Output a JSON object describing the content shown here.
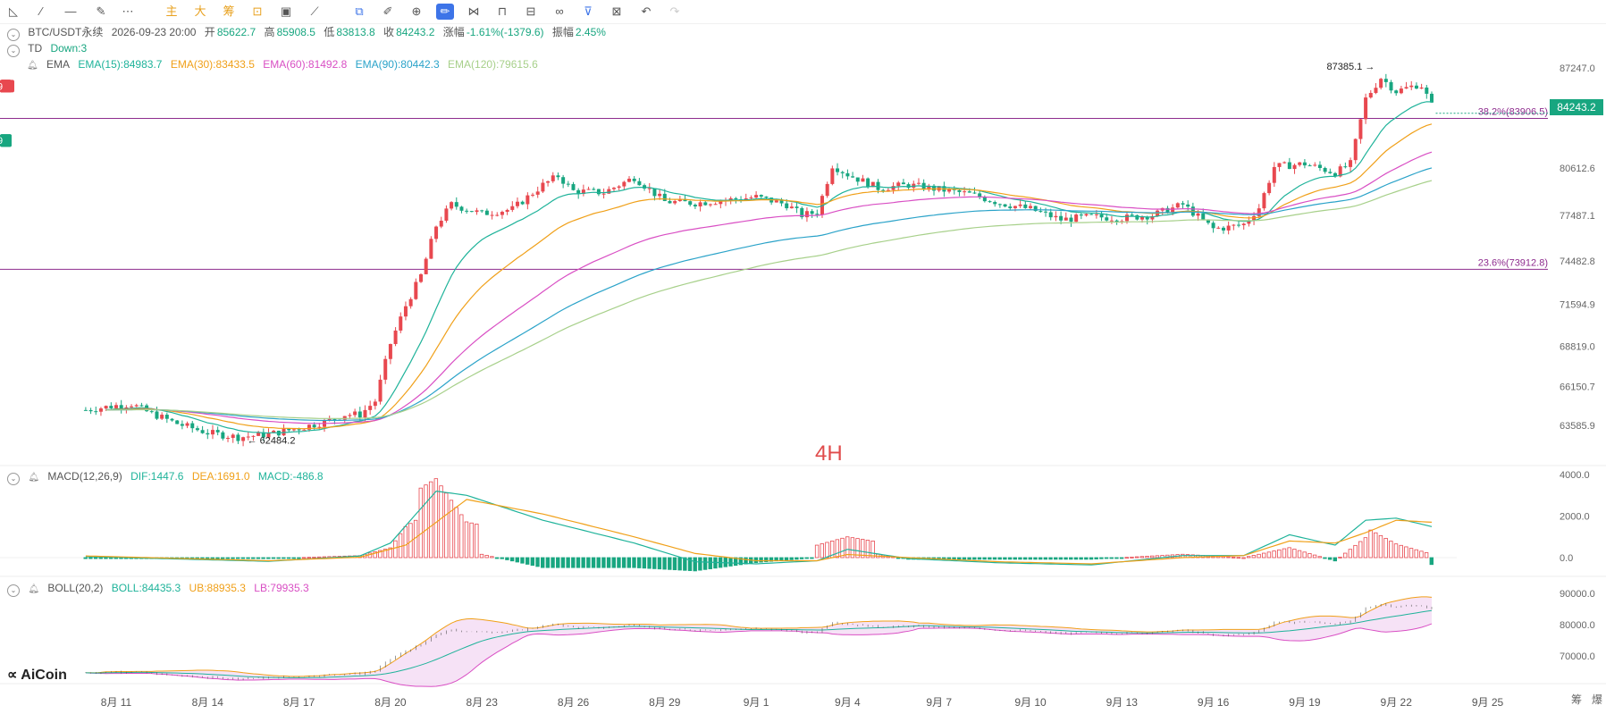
{
  "toolbar": {
    "icons": [
      "trend-line-icon",
      "ray-icon",
      "horizontal-line-icon",
      "brush-icon",
      "more-icon"
    ],
    "cn_buttons": [
      "主",
      "大",
      "筹"
    ],
    "tools": [
      "indicator-icon",
      "camera-icon",
      "ruler-icon",
      "copy-icon",
      "pen-icon",
      "zoom-icon",
      "draw-icon",
      "compare-icon",
      "lock-icon",
      "edit-icon",
      "magnet-icon",
      "filter-icon",
      "trash-icon",
      "undo-icon",
      "redo-icon"
    ]
  },
  "header": {
    "symbol": "BTC/USDT永续",
    "datetime": "2026-09-23 20:00",
    "open_label": "开",
    "open": "85622.7",
    "high_label": "高",
    "high": "85908.5",
    "low_label": "低",
    "low": "83813.8",
    "close_label": "收",
    "close": "84243.2",
    "change_label": "涨幅",
    "change": "-1.61%(-1379.6)",
    "amp_label": "振幅",
    "amp": "2.45%"
  },
  "td": {
    "name": "TD",
    "value": "Down:3"
  },
  "ema": {
    "name": "EMA",
    "items": [
      {
        "label": "EMA(15):84983.7",
        "color": "#1fb39a"
      },
      {
        "label": "EMA(30):83433.5",
        "color": "#f0a019"
      },
      {
        "label": "EMA(60):81492.8",
        "color": "#d94fc4"
      },
      {
        "label": "EMA(90):80442.3",
        "color": "#2ba3c9"
      },
      {
        "label": "EMA(120):79615.6",
        "color": "#a7d08a"
      }
    ]
  },
  "macd": {
    "name": "MACD(12,26,9)",
    "dif": "DIF:1447.6",
    "dea": "DEA:1691.0",
    "macd": "MACD:-486.8"
  },
  "boll": {
    "name": "BOLL(20,2)",
    "boll": "BOLL:84435.3",
    "ub": "UB:88935.3",
    "lb": "LB:79935.3"
  },
  "timeframe": "4H",
  "watermark": "AiCoin",
  "current_price": "84243.2",
  "corner_labels": [
    "筹",
    "爆"
  ],
  "colors": {
    "up": "#e8484f",
    "down": "#18a680",
    "fib": "#8e2c8e"
  },
  "chart_data": {
    "type": "candlestick",
    "main": {
      "y_ticks": [
        "87247.0",
        "80612.6",
        "77487.1",
        "74482.8",
        "71594.9",
        "68819.0",
        "66150.7",
        "63585.9"
      ],
      "x_ticks": [
        "8月 11",
        "8月 14",
        "8月 17",
        "8月 20",
        "8月 23",
        "8月 26",
        "8月 29",
        "9月 1",
        "9月 4",
        "9月 7",
        "9月 10",
        "9月 13",
        "9月 16",
        "9月 19",
        "9月 22",
        "9月 25"
      ],
      "fib_levels": [
        {
          "label": "38.2%(83906.5)",
          "value": 83906.5
        },
        {
          "label": "23.6%(73912.8)",
          "value": 73912.8
        }
      ],
      "annotations": [
        {
          "text": "87385.1",
          "note": "high marker"
        },
        {
          "text": "62484.2",
          "note": "low marker"
        }
      ],
      "td_marks": [
        {
          "label": "9",
          "day": 11.5,
          "kind": "sell"
        },
        {
          "label": "9",
          "day": 18.3,
          "kind": "sell"
        },
        {
          "label": "9",
          "day": 21.3,
          "kind": "sell"
        },
        {
          "label": "13",
          "day": 21.6,
          "kind": "sell"
        },
        {
          "label": "9",
          "day": 25.2,
          "kind": "sell"
        },
        {
          "label": "9",
          "day": 34.1,
          "kind": "buy"
        },
        {
          "label": "9",
          "day": 40.0,
          "kind": "buy"
        },
        {
          "label": "9",
          "day": 42.3,
          "kind": "buy"
        },
        {
          "label": "9",
          "day": 48.1,
          "kind": "sell"
        },
        {
          "label": "9",
          "day": 47.1,
          "kind": "sell"
        },
        {
          "label": "9",
          "day": 52.4,
          "kind": "sell"
        }
      ],
      "close_path": [
        [
          10,
          64600
        ],
        [
          11,
          64900
        ],
        [
          11.5,
          65000
        ],
        [
          12,
          64500
        ],
        [
          13,
          63700
        ],
        [
          14,
          63100
        ],
        [
          15,
          62800
        ],
        [
          16,
          63000
        ],
        [
          17,
          63400
        ],
        [
          18,
          63900
        ],
        [
          18.5,
          64300
        ],
        [
          19,
          64300
        ],
        [
          19.5,
          65200
        ],
        [
          20,
          69000
        ],
        [
          20.5,
          71500
        ],
        [
          21,
          73500
        ],
        [
          21.5,
          76800
        ],
        [
          22,
          78200
        ],
        [
          23,
          77600
        ],
        [
          24,
          77900
        ],
        [
          25,
          79500
        ],
        [
          25.5,
          80100
        ],
        [
          26,
          79100
        ],
        [
          27,
          79000
        ],
        [
          28,
          80000
        ],
        [
          29,
          78400
        ],
        [
          30,
          78300
        ],
        [
          31,
          78500
        ],
        [
          32,
          78700
        ],
        [
          33,
          78200
        ],
        [
          33.5,
          77500
        ],
        [
          34,
          77700
        ],
        [
          34.5,
          80800
        ],
        [
          35,
          80200
        ],
        [
          36,
          79300
        ],
        [
          37,
          79500
        ],
        [
          38,
          79200
        ],
        [
          39,
          78900
        ],
        [
          40,
          78300
        ],
        [
          41,
          77900
        ],
        [
          42,
          77200
        ],
        [
          43,
          77400
        ],
        [
          44,
          77300
        ],
        [
          45,
          77500
        ],
        [
          46,
          78200
        ],
        [
          47,
          76600
        ],
        [
          47.5,
          76700
        ],
        [
          48,
          76900
        ],
        [
          48.5,
          78000
        ],
        [
          49,
          80700
        ],
        [
          50,
          80900
        ],
        [
          51,
          80300
        ],
        [
          51.5,
          80900
        ],
        [
          52,
          85200
        ],
        [
          52.5,
          86600
        ],
        [
          53,
          85700
        ],
        [
          53.8,
          86200
        ],
        [
          54.3,
          84243.2
        ]
      ]
    },
    "macd_panel": {
      "y_ticks": [
        "4000.0",
        "2000.0",
        "0.0"
      ],
      "dif_path": [
        [
          10,
          50
        ],
        [
          16,
          -180
        ],
        [
          19,
          80
        ],
        [
          20,
          700
        ],
        [
          21.5,
          3200
        ],
        [
          22.5,
          3000
        ],
        [
          25,
          1800
        ],
        [
          28,
          700
        ],
        [
          30,
          -200
        ],
        [
          32,
          -300
        ],
        [
          34,
          -150
        ],
        [
          35,
          400
        ],
        [
          37,
          -50
        ],
        [
          40,
          -250
        ],
        [
          43,
          -350
        ],
        [
          46,
          100
        ],
        [
          48,
          100
        ],
        [
          49.5,
          1100
        ],
        [
          51,
          600
        ],
        [
          52,
          1800
        ],
        [
          53,
          1900
        ],
        [
          54.3,
          1447.6
        ]
      ],
      "dea_path": [
        [
          10,
          80
        ],
        [
          16,
          -150
        ],
        [
          19,
          20
        ],
        [
          20.5,
          600
        ],
        [
          22.5,
          2800
        ],
        [
          25,
          2100
        ],
        [
          28,
          1000
        ],
        [
          30,
          200
        ],
        [
          32,
          -150
        ],
        [
          34,
          -150
        ],
        [
          35,
          150
        ],
        [
          37,
          0
        ],
        [
          40,
          -200
        ],
        [
          43,
          -300
        ],
        [
          46,
          0
        ],
        [
          48,
          100
        ],
        [
          49.5,
          800
        ],
        [
          51,
          700
        ],
        [
          52,
          1200
        ],
        [
          53,
          1800
        ],
        [
          54.3,
          1691.0
        ]
      ]
    },
    "boll_panel": {
      "y_ticks": [
        "90000.0",
        "80000.0",
        "70000.0"
      ]
    }
  }
}
